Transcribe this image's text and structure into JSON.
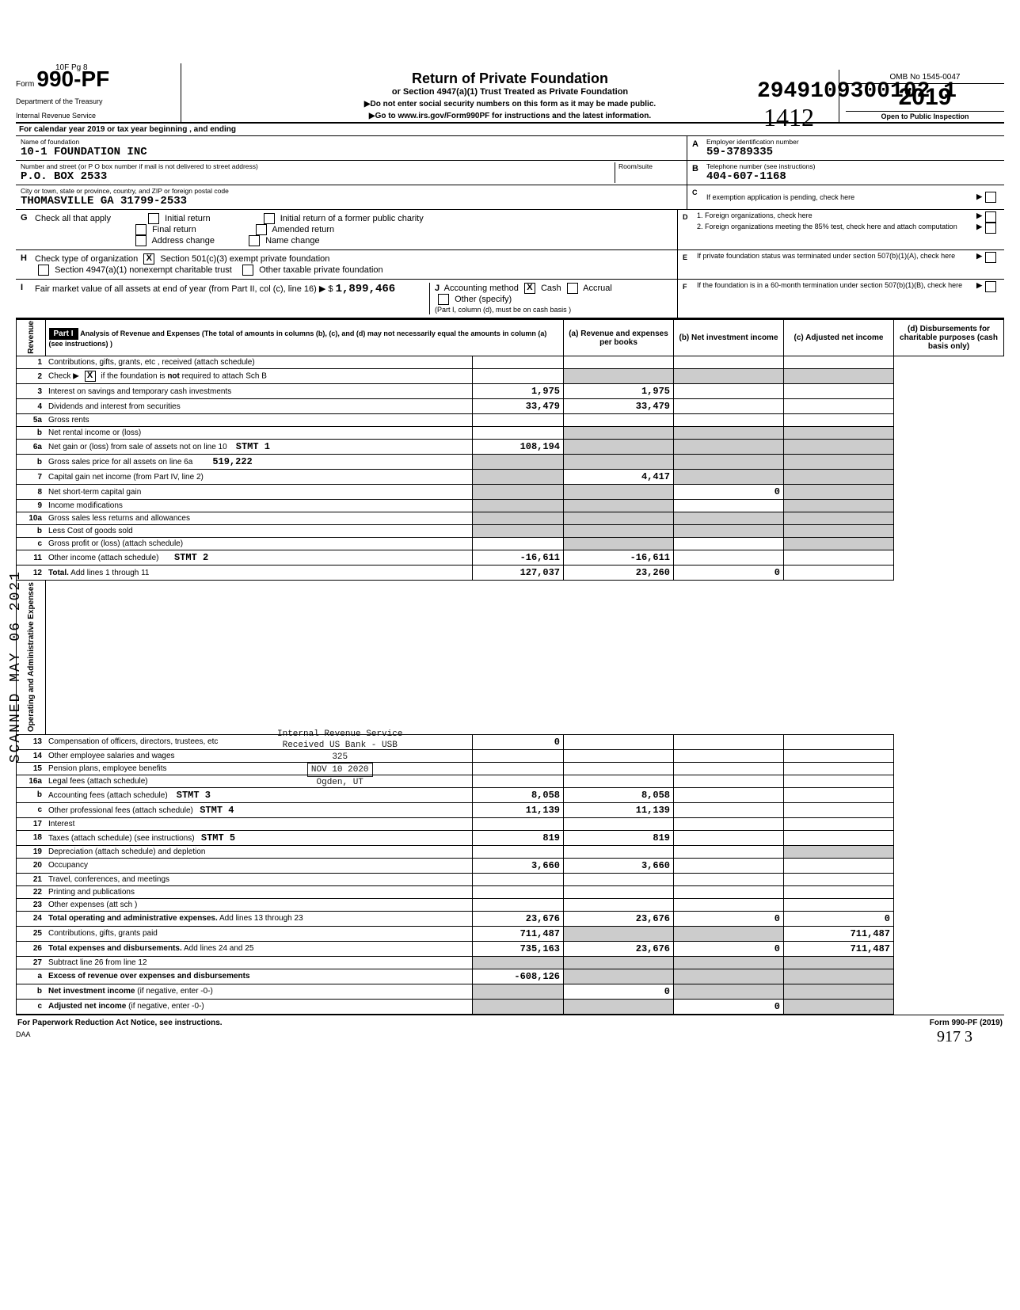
{
  "meta": {
    "top_left_mark": "10F Pg 8",
    "dln": "2949109300102  1",
    "hand_1412": "1412"
  },
  "header": {
    "form_word": "Form",
    "form_number": "990-PF",
    "dept1": "Department of the Treasury",
    "dept2": "Internal Revenue Service",
    "title": "Return of Private Foundation",
    "subtitle": "or Section 4947(a)(1) Trust Treated as Private Foundation",
    "note1": "▶Do not enter social security numbers on this form as it may be made public.",
    "note2": "▶Go to www.irs.gov/Form990PF for instructions and the latest information.",
    "omb": "OMB No 1545-0047",
    "year": "2019",
    "inspect": "Open to Public Inspection"
  },
  "cal_row": "For calendar year 2019 or tax year beginning                                         , and ending",
  "ident": {
    "name_label": "Name of foundation",
    "name_value": "10-1 FOUNDATION INC",
    "street_label": "Number and street (or P O  box number if mail is not delivered to street address)",
    "room_label": "Room/suite",
    "street_value": "P.O. BOX 2533",
    "city_label": "City or town, state or province, country, and ZIP or foreign postal code",
    "city_value": "THOMASVILLE                    GA 31799-2533",
    "A_label": "Employer identification number",
    "A_value": "59-3789335",
    "B_label": "Telephone number (see instructions)",
    "B_value": "404-607-1168",
    "C_label": "If exemption application is pending, check here",
    "D1": "1.  Foreign organizations, check here",
    "D2": "2.  Foreign organizations meeting the 85% test, check here and attach computation",
    "E_label": "If private foundation status was terminated under section 507(b)(1)(A), check here",
    "F_label": "If the foundation is in a 60-month termination under section 507(b)(1)(B), check here"
  },
  "G": {
    "label": "Check all that apply",
    "opts": [
      "Initial return",
      "Final return",
      "Address change",
      "Initial return of a former public charity",
      "Amended return",
      "Name change"
    ]
  },
  "H_label": "Check type of organization",
  "H_opts": [
    "Section 501(c)(3) exempt private foundation",
    "Section 4947(a)(1) nonexempt charitable trust",
    "Other taxable private foundation"
  ],
  "I": {
    "fmv_label": "Fair market value of all assets at end of year (from Part II, col (c), line 16) ▶ $",
    "fmv_value": "1,899,466",
    "J_label": "Accounting method",
    "J_cash": "Cash",
    "J_accrual": "Accrual",
    "J_other": "Other (specify)",
    "note": "(Part I, column (d), must be on cash basis )"
  },
  "part1_header": {
    "label": "Part I",
    "desc": "Analysis of Revenue and Expenses (The total of amounts in columns (b), (c), and (d) may not necessarily equal the amounts in column (a) (see instructions) )",
    "col_a": "(a) Revenue and expenses per books",
    "col_b": "(b) Net investment income",
    "col_c": "(c) Adjusted net income",
    "col_d": "(d) Disbursements for charitable purposes (cash basis only)"
  },
  "revenue_label": "Revenue",
  "expense_label": "Operating and Administrative Expenses",
  "scanned": "SCANNED MAY 06 2021",
  "stamp": {
    "l1": "Internal Revenue Service",
    "l2": "Received US Bank - USB",
    "l3": "325",
    "l4": "NOV 10 2020",
    "l5": "Ogden, UT"
  },
  "rows": [
    {
      "n": "1",
      "d": "",
      "a": "",
      "b": "",
      "c": ""
    },
    {
      "n": "2",
      "d": "",
      "a": "",
      "b": "",
      "c": "",
      "shade_bcd": true
    },
    {
      "n": "3",
      "d": "",
      "a": "1,975",
      "b": "1,975",
      "c": ""
    },
    {
      "n": "4",
      "d": "",
      "a": "33,479",
      "b": "33,479",
      "c": ""
    },
    {
      "n": "5a",
      "d": "",
      "a": "",
      "b": "",
      "c": ""
    },
    {
      "n": "b",
      "d": "",
      "a": "",
      "b": "",
      "c": "",
      "shade_bcd": true
    },
    {
      "n": "6a",
      "d": "",
      "a": "108,194",
      "b": "",
      "c": "",
      "shade_bcd": true,
      "stmt": ""
    },
    {
      "n": "b",
      "d": "",
      "a": "",
      "b": "",
      "c": "",
      "shade_all": true
    },
    {
      "n": "7",
      "d": "",
      "a": "",
      "b": "4,417",
      "c": "",
      "shade_a": true,
      "shade_cd": true
    },
    {
      "n": "8",
      "d": "",
      "a": "",
      "b": "",
      "c": "0",
      "shade_ab": true,
      "shade_d": true
    },
    {
      "n": "9",
      "d": "",
      "a": "",
      "b": "",
      "c": "",
      "shade_ab": true,
      "shade_d": true
    },
    {
      "n": "10a",
      "d": "",
      "a": "",
      "b": "",
      "c": "",
      "shade_all": true
    },
    {
      "n": "b",
      "d": "",
      "a": "",
      "b": "",
      "c": "",
      "shade_all": true
    },
    {
      "n": "c",
      "d": "",
      "a": "",
      "b": "",
      "c": "",
      "shade_b": true,
      "shade_d": true
    },
    {
      "n": "11",
      "d": "",
      "a": "-16,611",
      "b": "-16,611",
      "c": ""
    },
    {
      "n": "12",
      "d": "",
      "a": "127,037",
      "b": "23,260",
      "c": "0",
      "bold": true
    },
    {
      "n": "13",
      "d": "",
      "a": "0",
      "b": "",
      "c": ""
    },
    {
      "n": "14",
      "d": "",
      "a": "",
      "b": "",
      "c": ""
    },
    {
      "n": "15",
      "d": "",
      "a": "",
      "b": "",
      "c": ""
    },
    {
      "n": "16a",
      "d": "",
      "a": "",
      "b": "",
      "c": ""
    },
    {
      "n": "b",
      "d": "",
      "a": "8,058",
      "b": "8,058",
      "c": ""
    },
    {
      "n": "c",
      "d": "",
      "a": "11,139",
      "b": "11,139",
      "c": ""
    },
    {
      "n": "17",
      "d": "",
      "a": "",
      "b": "",
      "c": ""
    },
    {
      "n": "18",
      "d": "",
      "a": "819",
      "b": "819",
      "c": ""
    },
    {
      "n": "19",
      "d": "",
      "a": "",
      "b": "",
      "c": "",
      "shade_d": true
    },
    {
      "n": "20",
      "d": "",
      "a": "3,660",
      "b": "3,660",
      "c": ""
    },
    {
      "n": "21",
      "d": "",
      "a": "",
      "b": "",
      "c": ""
    },
    {
      "n": "22",
      "d": "",
      "a": "",
      "b": "",
      "c": ""
    },
    {
      "n": "23",
      "d": "",
      "a": "",
      "b": "",
      "c": ""
    },
    {
      "n": "24",
      "d": "0",
      "a": "23,676",
      "b": "23,676",
      "c": "0",
      "bold": true
    },
    {
      "n": "25",
      "d": "711,487",
      "a": "711,487",
      "b": "",
      "c": "",
      "shade_bc": true
    },
    {
      "n": "26",
      "d": "711,487",
      "a": "735,163",
      "b": "23,676",
      "c": "0",
      "bold": true
    },
    {
      "n": "27",
      "d": "",
      "a": "",
      "b": "",
      "c": "",
      "shade_all": true
    },
    {
      "n": "a",
      "d": "",
      "a": "-608,126",
      "b": "",
      "c": "",
      "shade_bcd": true,
      "bold": true
    },
    {
      "n": "b",
      "d": "",
      "a": "",
      "b": "0",
      "c": "",
      "shade_a": true,
      "shade_cd": true,
      "bold": true
    },
    {
      "n": "c",
      "d": "",
      "a": "",
      "b": "",
      "c": "0",
      "shade_ab": true,
      "shade_d": true,
      "bold": true
    }
  ],
  "footer": {
    "left": "For Paperwork Reduction Act Notice, see instructions.",
    "daa": "DAA",
    "right": "Form 990-PF (2019)",
    "hand": "917  3"
  }
}
